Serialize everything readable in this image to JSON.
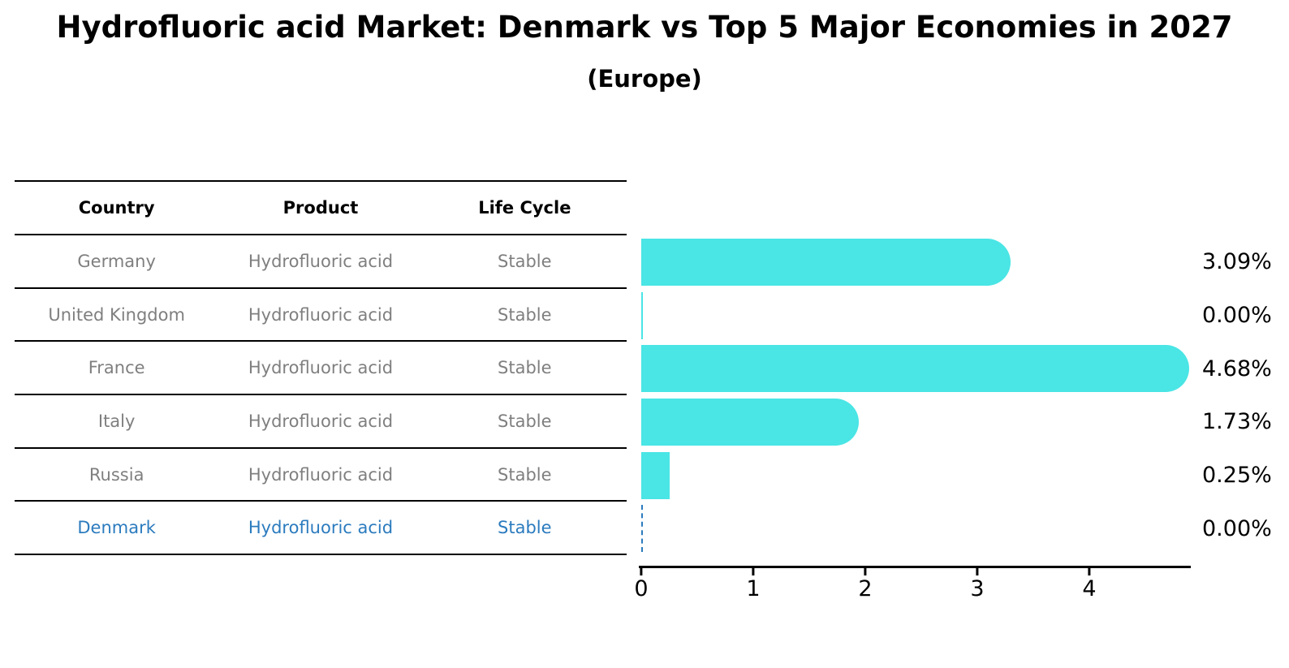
{
  "header": {
    "title": "Hydrofluoric acid Market: Denmark vs Top 5 Major Economies in 2027",
    "subtitle": "(Europe)"
  },
  "table": {
    "columns": [
      "Country",
      "Product",
      "Life Cycle"
    ],
    "rows": [
      {
        "country": "Germany",
        "product": "Hydrofluoric acid",
        "life_cycle": "Stable",
        "highlight": false
      },
      {
        "country": "United Kingdom",
        "product": "Hydrofluoric acid",
        "life_cycle": "Stable",
        "highlight": false
      },
      {
        "country": "France",
        "product": "Hydrofluoric acid",
        "life_cycle": "Stable",
        "highlight": false
      },
      {
        "country": "Italy",
        "product": "Hydrofluoric acid",
        "life_cycle": "Stable",
        "highlight": false
      },
      {
        "country": "Russia",
        "product": "Hydrofluoric acid",
        "life_cycle": "Stable",
        "highlight": false
      },
      {
        "country": "Denmark",
        "product": "Hydrofluoric acid",
        "life_cycle": "Stable",
        "highlight": true
      }
    ]
  },
  "chart_data": {
    "type": "bar",
    "orientation": "horizontal",
    "title": "Hydrofluoric acid Market: Denmark vs Top 5 Major Economies in 2027 (Europe)",
    "categories": [
      "Germany",
      "United Kingdom",
      "France",
      "Italy",
      "Russia",
      "Denmark"
    ],
    "values": [
      3.09,
      0.0,
      4.68,
      1.73,
      0.25,
      0.0
    ],
    "value_labels": [
      "3.09%",
      "0.00%",
      "4.68%",
      "1.73%",
      "0.25%",
      "0.00%"
    ],
    "xlabel": "",
    "ylabel": "",
    "xlim": [
      0,
      4.9
    ],
    "x_ticks": [
      0,
      1,
      2,
      3,
      4
    ],
    "grid": false,
    "legend": false,
    "bar_color": "#4AE5E5",
    "highlight_color": "#2B7BBE",
    "bar_styles": [
      "pill",
      "hairline",
      "pill",
      "pill",
      "square",
      "dashed-zero"
    ]
  }
}
